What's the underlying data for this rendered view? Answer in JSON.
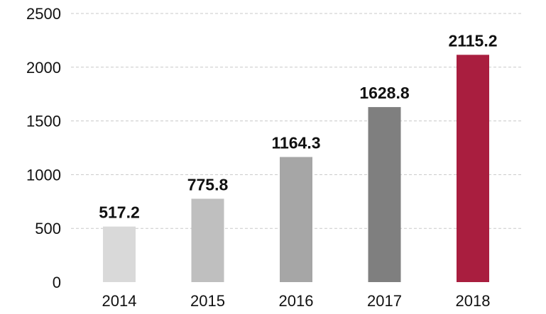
{
  "chart_data": {
    "type": "bar",
    "title": "",
    "xlabel": "",
    "ylabel": "",
    "categories": [
      "2014",
      "2015",
      "2016",
      "2017",
      "2018"
    ],
    "values": [
      517.2,
      775.8,
      1164.3,
      1628.8,
      2115.2
    ],
    "value_labels": [
      "517.2",
      "775.8",
      "1164.3",
      "1628.8",
      "2115.2"
    ],
    "bar_colors": [
      "#d9d9d9",
      "#bfbfbf",
      "#a6a6a6",
      "#7f7f7f",
      "#a91e3f"
    ],
    "ylim": [
      0,
      2500
    ],
    "yticks": [
      0,
      500,
      1000,
      1500,
      2000,
      2500
    ],
    "ytick_labels": [
      "0",
      "500",
      "1000",
      "1500",
      "2000",
      "2500"
    ],
    "grid": "horizontal dashed",
    "legend": "none"
  }
}
